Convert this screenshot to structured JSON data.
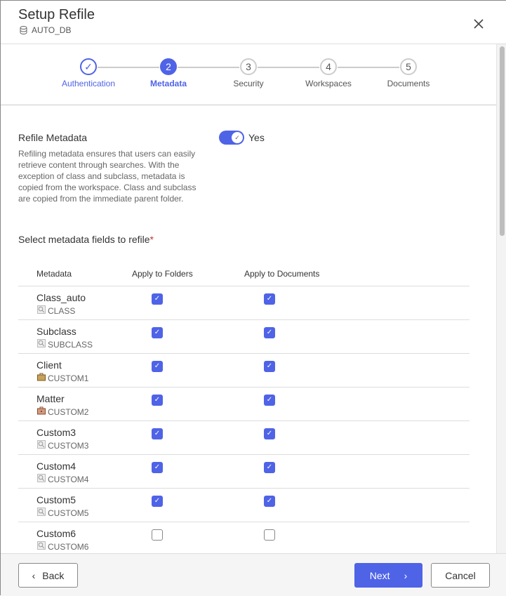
{
  "header": {
    "title": "Setup Refile",
    "database": "AUTO_DB"
  },
  "steps": [
    {
      "number": "1",
      "label": "Authentication",
      "state": "done"
    },
    {
      "number": "2",
      "label": "Metadata",
      "state": "active"
    },
    {
      "number": "3",
      "label": "Security",
      "state": "pending"
    },
    {
      "number": "4",
      "label": "Workspaces",
      "state": "pending"
    },
    {
      "number": "5",
      "label": "Documents",
      "state": "pending"
    }
  ],
  "refile": {
    "title": "Refile Metadata",
    "description": "Refiling metadata ensures that users can easily retrieve content through searches. With the exception of class and subclass, metadata is copied from the workspace. Class and subclass are copied from the immediate parent folder.",
    "toggle_on": true,
    "toggle_label": "Yes"
  },
  "select_label": "Select metadata fields to refile",
  "required_mark": "*",
  "table": {
    "headers": [
      "Metadata",
      "Apply to Folders",
      "Apply to Documents"
    ],
    "rows": [
      {
        "name": "Class_auto",
        "code": "CLASS",
        "icon": "lookup-icon",
        "folders": true,
        "documents": true
      },
      {
        "name": "Subclass",
        "code": "SUBCLASS",
        "icon": "lookup-icon",
        "folders": true,
        "documents": true
      },
      {
        "name": "Client",
        "code": "CUSTOM1",
        "icon": "client-briefcase-icon",
        "folders": true,
        "documents": true
      },
      {
        "name": "Matter",
        "code": "CUSTOM2",
        "icon": "matter-briefcase-icon",
        "folders": true,
        "documents": true
      },
      {
        "name": "Custom3",
        "code": "CUSTOM3",
        "icon": "lookup-icon",
        "folders": true,
        "documents": true
      },
      {
        "name": "Custom4",
        "code": "CUSTOM4",
        "icon": "lookup-icon",
        "folders": true,
        "documents": true
      },
      {
        "name": "Custom5",
        "code": "CUSTOM5",
        "icon": "lookup-icon",
        "folders": true,
        "documents": true
      },
      {
        "name": "Custom6",
        "code": "CUSTOM6",
        "icon": "lookup-icon",
        "folders": false,
        "documents": false
      }
    ]
  },
  "footer": {
    "back": "Back",
    "next": "Next",
    "cancel": "Cancel"
  },
  "colors": {
    "accent": "#4f63e7",
    "required": "#c0392b"
  }
}
